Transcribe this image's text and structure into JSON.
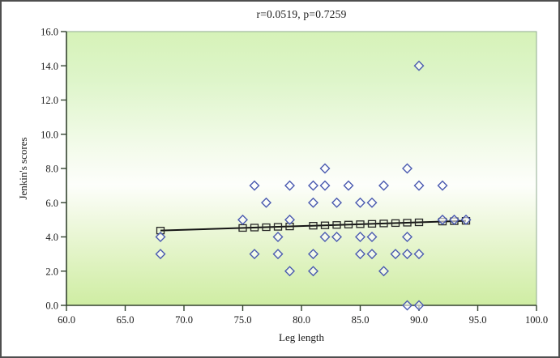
{
  "chart_data": {
    "type": "scatter",
    "title": "r=0.0519, p=0.7259",
    "xlabel": "Leg length",
    "ylabel": "Jenkin's scores",
    "xlim": [
      60.0,
      100.0
    ],
    "ylim": [
      0.0,
      16.0
    ],
    "xticks": [
      60,
      65,
      70,
      75,
      80,
      85,
      90,
      95,
      100
    ],
    "xtick_labels": [
      "60.0",
      "65.0",
      "70.0",
      "75.0",
      "80.0",
      "85.0",
      "90.0",
      "95.0",
      "100.0"
    ],
    "yticks": [
      0,
      2,
      4,
      6,
      8,
      10,
      12,
      14,
      16
    ],
    "ytick_labels": [
      "0.0",
      "2.0",
      "4.0",
      "6.0",
      "8.0",
      "10.0",
      "12.0",
      "14.0",
      "16.0"
    ],
    "grid": false,
    "legend": "none",
    "series": [
      {
        "name": "observations",
        "marker": "diamond",
        "color": "#4a5ab0",
        "points": [
          [
            68,
            3
          ],
          [
            68,
            4
          ],
          [
            75,
            5
          ],
          [
            76,
            3
          ],
          [
            76,
            7
          ],
          [
            77,
            6
          ],
          [
            78,
            3
          ],
          [
            78,
            4
          ],
          [
            79,
            2
          ],
          [
            79,
            5
          ],
          [
            79,
            7
          ],
          [
            81,
            2
          ],
          [
            81,
            3
          ],
          [
            81,
            6
          ],
          [
            81,
            7
          ],
          [
            82,
            4
          ],
          [
            82,
            7
          ],
          [
            82,
            8
          ],
          [
            83,
            4
          ],
          [
            83,
            6
          ],
          [
            84,
            7
          ],
          [
            85,
            3
          ],
          [
            85,
            4
          ],
          [
            85,
            6
          ],
          [
            86,
            3
          ],
          [
            86,
            4
          ],
          [
            86,
            6
          ],
          [
            87,
            2
          ],
          [
            87,
            7
          ],
          [
            88,
            3
          ],
          [
            89,
            0
          ],
          [
            89,
            3
          ],
          [
            89,
            4
          ],
          [
            89,
            8
          ],
          [
            90,
            0
          ],
          [
            90,
            3
          ],
          [
            90,
            7
          ],
          [
            90,
            14
          ],
          [
            92,
            5
          ],
          [
            92,
            7
          ],
          [
            93,
            5
          ],
          [
            94,
            5
          ]
        ]
      },
      {
        "name": "linear-fit",
        "marker": "square",
        "color": "#1a1a1a",
        "line": {
          "x": [
            68,
            94
          ],
          "y": [
            4.37,
            4.94
          ]
        },
        "marker_x": [
          68,
          75,
          76,
          77,
          78,
          79,
          81,
          82,
          83,
          84,
          85,
          86,
          87,
          88,
          89,
          90,
          92,
          93,
          94
        ]
      }
    ],
    "colors": {
      "marker_stroke": "#4a5ab0",
      "marker_fill": "rgba(255,255,255,0.6)",
      "trend_stroke": "#151515",
      "axis": "#33432f",
      "plot_border": "#8fab8f",
      "bg_top_green": "#d6f2b8",
      "bg_middle_white": "#fdfefb",
      "bg_bottom_green": "#cfeda3"
    }
  }
}
